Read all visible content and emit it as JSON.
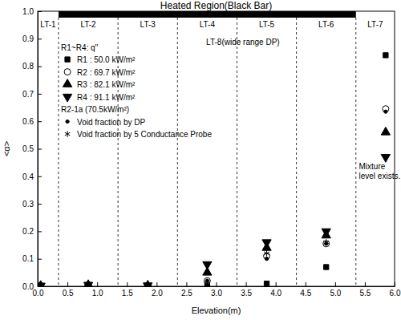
{
  "chart_data": {
    "type": "scatter",
    "title": "Heated Region(Black Bar)",
    "x_label": "Elevation(m)",
    "y_label": "<α>",
    "xlim": [
      0,
      6
    ],
    "ylim": [
      0,
      1
    ],
    "xticks": [
      {
        "value": 0,
        "label": "0.0"
      },
      0.5,
      {
        "value": 1,
        "label": "1.0"
      },
      1.5,
      {
        "value": 2,
        "label": "2.0"
      },
      2.5,
      {
        "value": 3,
        "label": "3.0"
      },
      3.5,
      {
        "value": 4,
        "label": "4.0"
      },
      4.5,
      {
        "value": 5,
        "label": "5.0"
      },
      5.5,
      {
        "value": 6,
        "label": "6.0"
      }
    ],
    "yticks": [
      {
        "value": 0,
        "label": "0.0"
      },
      0.1,
      0.2,
      0.3,
      0.4,
      0.5,
      0.6,
      0.7,
      0.8,
      0.9,
      {
        "value": 1,
        "label": "1.0"
      }
    ],
    "grid": false,
    "legend": "upper left",
    "heated_region": [
      0.35,
      5.35
    ],
    "regions": [
      {
        "label": "LT-1",
        "from": 0,
        "to": 0.35
      },
      {
        "label": "LT-2",
        "from": 0.35,
        "to": 1.35
      },
      {
        "label": "LT-3",
        "from": 1.35,
        "to": 2.35
      },
      {
        "label": "LT-4",
        "from": 2.35,
        "to": 3.35
      },
      {
        "label": "LT-5",
        "from": 3.35,
        "to": 4.35
      },
      {
        "label": "LT-6",
        "from": 4.35,
        "to": 5.35
      },
      {
        "label": "LT-7",
        "from": 5.35,
        "to": 6
      }
    ],
    "span_label": "LT-8(wide range DP)",
    "note": [
      "Mixture",
      "level exists."
    ],
    "legend_titles": [
      "R1~R4: q''",
      "R2-1a (70.5kW/m²)"
    ],
    "x": [
      0.05,
      0.85,
      1.85,
      2.85,
      3.85,
      4.85,
      5.85
    ],
    "series": [
      {
        "name": "R1 : 50.0 kW/m²",
        "color": "#000000",
        "marker": "square",
        "values": [
          0.002,
          0.005,
          0.003,
          0.005,
          0.01,
          0.07,
          0.84
        ]
      },
      {
        "name": "R2 : 69.7 kW/m²",
        "color": "#000000",
        "marker": "circle-open",
        "values": [
          0.002,
          0.005,
          0.003,
          0.02,
          0.11,
          0.155,
          0.645
        ]
      },
      {
        "name": "R3 : 82.1 kW/m²",
        "color": "#000000",
        "marker": "triangle-up",
        "values": [
          0.002,
          0.005,
          0.003,
          0.05,
          0.14,
          0.185,
          0.56
        ]
      },
      {
        "name": "R4 : 91.1 kW/m²",
        "color": "#000000",
        "marker": "triangle-down",
        "values": [
          0.002,
          0.005,
          0.003,
          0.08,
          0.16,
          0.2,
          0.47
        ]
      },
      {
        "name": "Void fraction by DP",
        "color": "#000000",
        "marker": "dot",
        "values": [
          null,
          null,
          null,
          0.02,
          0.1,
          0.155,
          0.635
        ]
      },
      {
        "name": "Void fraction by 5 Conductance Probe",
        "color": "#000000",
        "marker": "asterisk",
        "values": [
          null,
          null,
          null,
          0.01,
          0.12,
          0.16,
          null
        ]
      }
    ]
  }
}
